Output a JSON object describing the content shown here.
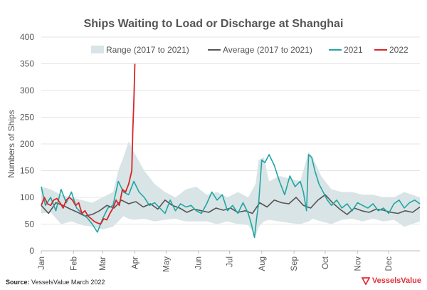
{
  "chart_data": {
    "type": "line",
    "title": "Ships Waiting to Load or Discharge at Shanghai",
    "ylabel": "Numbers of Ships",
    "xlabel": "",
    "ylim": [
      0,
      400
    ],
    "yticks": [
      "0",
      "50",
      "100",
      "150",
      "200",
      "250",
      "300",
      "350",
      "400"
    ],
    "xticks": [
      "Jan",
      "Feb",
      "Mar",
      "Apr",
      "May",
      "Jun",
      "Jul",
      "Aug",
      "Sep",
      "Oct",
      "Nov",
      "Dec"
    ],
    "grid": true,
    "legend_position": "top",
    "colors": {
      "range": "#d9e4e6",
      "average": "#555555",
      "y2021": "#1fa6a3",
      "y2022": "#d7262c"
    },
    "legend": [
      "Range (2017 to 2021)",
      "Average (2017 to 2021)",
      "2021",
      "2022"
    ],
    "series": [
      {
        "name": "Range (2017 to 2021)",
        "x": [
          1,
          10,
          20,
          30,
          40,
          50,
          60,
          70,
          75,
          80,
          85,
          90,
          100,
          110,
          120,
          130,
          140,
          150,
          160,
          170,
          180,
          190,
          200,
          207,
          210,
          215,
          220,
          230,
          240,
          250,
          258,
          262,
          270,
          280,
          290,
          300,
          310,
          320,
          330,
          340,
          350,
          365
        ],
        "lower": [
          70,
          72,
          50,
          55,
          48,
          45,
          40,
          45,
          55,
          65,
          60,
          58,
          60,
          55,
          58,
          60,
          55,
          55,
          55,
          50,
          55,
          50,
          48,
          28,
          45,
          55,
          58,
          55,
          52,
          50,
          55,
          60,
          55,
          50,
          58,
          60,
          55,
          60,
          55,
          58,
          45,
          55
        ],
        "upper": [
          120,
          115,
          105,
          100,
          95,
          90,
          100,
          110,
          150,
          175,
          205,
          185,
          150,
          125,
          110,
          100,
          115,
          120,
          105,
          110,
          100,
          110,
          100,
          125,
          170,
          175,
          130,
          140,
          135,
          130,
          185,
          175,
          140,
          115,
          110,
          110,
          105,
          105,
          100,
          100,
          110,
          100
        ]
      },
      {
        "name": "Average (2017 to 2021)",
        "x": [
          1,
          8,
          15,
          22,
          29,
          36,
          43,
          50,
          57,
          64,
          71,
          78,
          85,
          92,
          99,
          106,
          113,
          120,
          127,
          134,
          141,
          148,
          155,
          162,
          169,
          176,
          183,
          190,
          197,
          204,
          211,
          218,
          225,
          232,
          239,
          246,
          253,
          260,
          267,
          274,
          281,
          288,
          295,
          302,
          309,
          316,
          323,
          330,
          337,
          344,
          351,
          358,
          365
        ],
        "values": [
          85,
          70,
          90,
          85,
          78,
          72,
          65,
          68,
          75,
          85,
          80,
          95,
          88,
          92,
          82,
          88,
          78,
          95,
          85,
          80,
          72,
          78,
          75,
          72,
          80,
          76,
          80,
          72,
          75,
          70,
          90,
          82,
          95,
          90,
          88,
          100,
          85,
          80,
          95,
          105,
          90,
          78,
          68,
          80,
          75,
          72,
          78,
          76,
          72,
          70,
          75,
          72,
          82
        ]
      },
      {
        "name": "2021",
        "x": [
          1,
          5,
          10,
          15,
          20,
          25,
          30,
          35,
          40,
          45,
          50,
          55,
          60,
          65,
          70,
          75,
          80,
          85,
          90,
          95,
          100,
          105,
          110,
          115,
          120,
          125,
          130,
          135,
          140,
          145,
          150,
          155,
          160,
          165,
          170,
          175,
          180,
          185,
          190,
          195,
          200,
          203,
          206,
          208,
          210,
          213,
          216,
          220,
          225,
          230,
          235,
          240,
          245,
          250,
          253,
          256,
          258,
          261,
          264,
          268,
          272,
          276,
          280,
          285,
          290,
          295,
          300,
          305,
          310,
          315,
          320,
          325,
          330,
          335,
          340,
          345,
          350,
          355,
          360,
          365
        ],
        "values": [
          120,
          85,
          100,
          75,
          115,
          90,
          110,
          80,
          70,
          62,
          50,
          35,
          60,
          80,
          85,
          130,
          110,
          105,
          130,
          110,
          100,
          85,
          90,
          80,
          70,
          95,
          75,
          88,
          82,
          85,
          75,
          70,
          88,
          110,
          95,
          105,
          75,
          85,
          70,
          90,
          70,
          50,
          25,
          60,
          90,
          170,
          165,
          180,
          160,
          130,
          105,
          140,
          120,
          130,
          110,
          75,
          180,
          175,
          150,
          125,
          110,
          95,
          85,
          95,
          80,
          88,
          75,
          90,
          85,
          80,
          88,
          75,
          80,
          70,
          88,
          95,
          80,
          90,
          95,
          88
        ]
      },
      {
        "name": "2022",
        "x": [
          1,
          4,
          7,
          10,
          13,
          16,
          19,
          22,
          25,
          28,
          31,
          34,
          37,
          40,
          43,
          46,
          49,
          52,
          55,
          58,
          61,
          64,
          67,
          70,
          73,
          76,
          79,
          82,
          85,
          88,
          89,
          90,
          91
        ],
        "values": [
          85,
          100,
          88,
          85,
          95,
          98,
          90,
          80,
          95,
          100,
          95,
          85,
          90,
          70,
          75,
          65,
          60,
          55,
          52,
          50,
          60,
          58,
          70,
          80,
          95,
          85,
          115,
          110,
          125,
          150,
          225,
          280,
          350
        ]
      }
    ]
  },
  "footer": {
    "source_label": "Source:",
    "source_text": " VesselsValue March 2022",
    "logo_text": "VesselsValue"
  }
}
